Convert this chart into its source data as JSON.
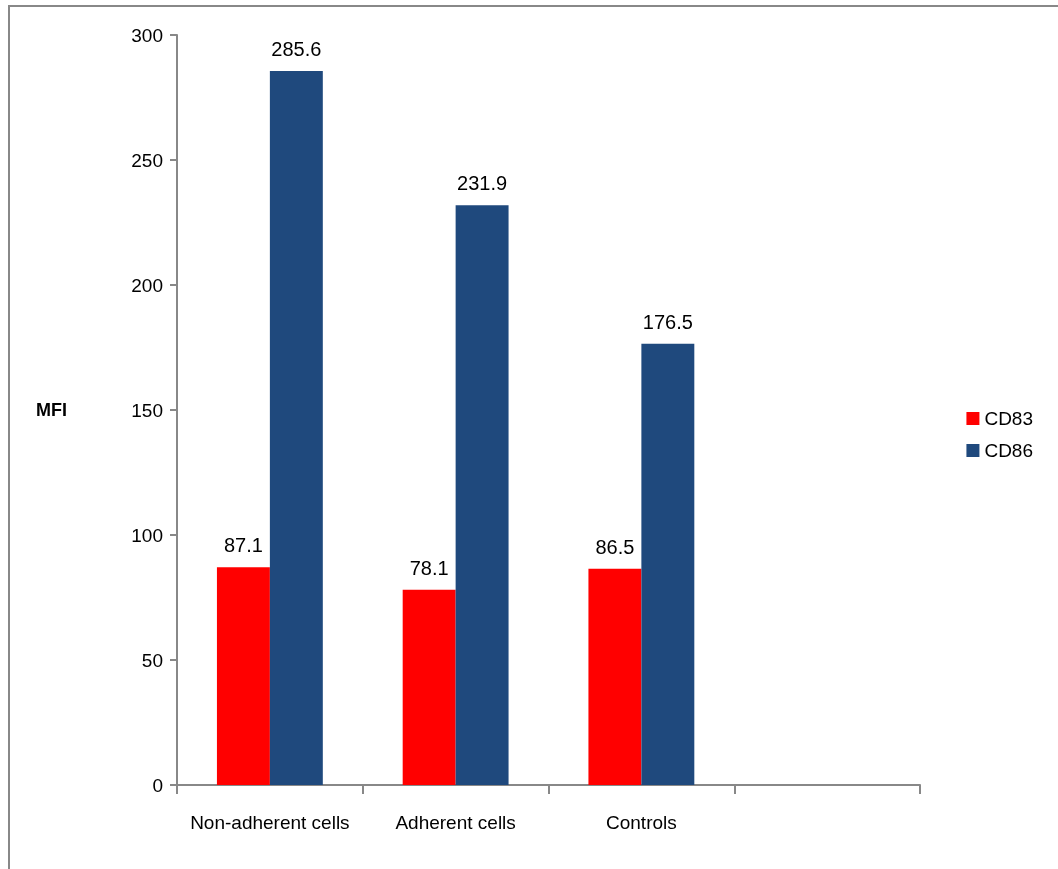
{
  "chart_data": {
    "type": "bar",
    "ylabel": "MFI",
    "categories": [
      "Non-adherent cells",
      "Adherent cells",
      "Controls",
      null
    ],
    "series": [
      {
        "name": "CD83",
        "color": "#ff0000",
        "values": [
          87.1,
          78.1,
          86.5,
          null
        ]
      },
      {
        "name": "CD86",
        "color": "#1f497d",
        "values": [
          285.6,
          231.9,
          176.5,
          null
        ]
      }
    ],
    "ylim": [
      0,
      300
    ],
    "yticks": [
      0,
      50,
      100,
      150,
      200,
      250,
      300
    ],
    "data_labels": true,
    "grid": false,
    "legend": "right"
  }
}
